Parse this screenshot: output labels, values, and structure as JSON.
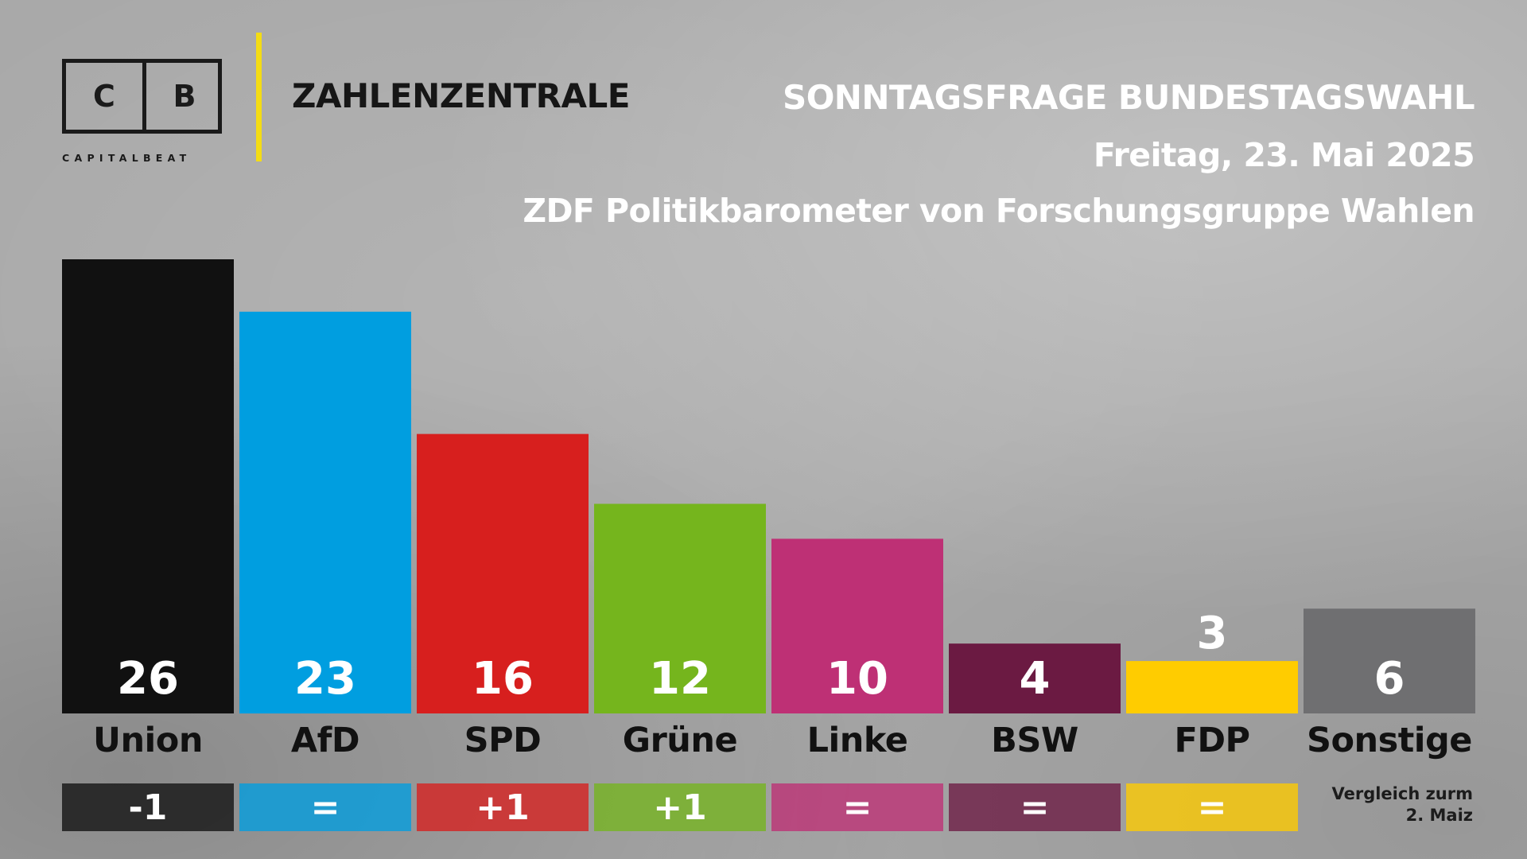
{
  "brand": {
    "logo_letter_left": "C",
    "logo_letter_right": "B",
    "logo_subtitle": "CAPITALBEAT",
    "title": "ZAHLENZENTRALE"
  },
  "header": {
    "title": "SONNTAGSFRAGE BUNDESTAGSWAHL",
    "date": "Freitag, 23. Mai 2025",
    "source": "ZDF Politikbarometer von Forschungsgruppe Wahlen"
  },
  "comparison_note": {
    "line1": "Vergleich zurm",
    "line2": "2. Maiz"
  },
  "chart_data": {
    "type": "bar",
    "categories": [
      "Union",
      "AfD",
      "SPD",
      "Grüne",
      "Linke",
      "BSW",
      "FDP",
      "Sonstige"
    ],
    "values": [
      26,
      23,
      16,
      12,
      10,
      4,
      3,
      6
    ],
    "changes": [
      "-1",
      "=",
      "+1",
      "+1",
      "=",
      "=",
      "=",
      ""
    ],
    "colors": [
      "#111111",
      "#009ee0",
      "#d71f1e",
      "#75b51d",
      "#be3075",
      "#6b1a42",
      "#ffcc00",
      "#6f6f71"
    ],
    "ylim": [
      0,
      26
    ]
  }
}
